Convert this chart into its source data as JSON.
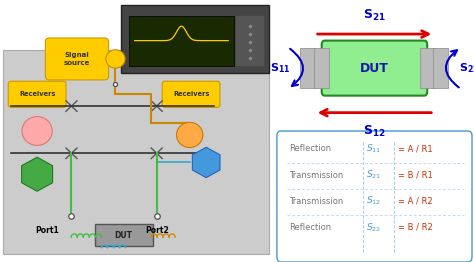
{
  "left_bg_color": "#cccccc",
  "left_bg_edge": "#aaaaaa",
  "instr_body_color": "#444444",
  "instr_edge_color": "#222222",
  "screen_color": "#1a1a00",
  "screen_edge": "#111111",
  "signal_box_color": "#ffcc00",
  "signal_box_edge": "#cc9900",
  "receivers_box_color": "#ffcc00",
  "receivers_box_edge": "#cc9900",
  "r1_color": "#ffaaaa",
  "r1_edge": "#dd7777",
  "r2_color": "#ffaa44",
  "r2_edge": "#cc7700",
  "hex_A_color": "#44aa44",
  "hex_A_edge": "#227722",
  "hex_B_color": "#4499dd",
  "hex_B_edge": "#2266bb",
  "dut_bot_color": "#999999",
  "dut_bot_edge": "#555555",
  "wire_orange": "#cc8800",
  "wire_green": "#44bb44",
  "wire_black": "#333333",
  "wire_blue": "#33aacc",
  "port_color": "#000000",
  "dut_diagram_color": "#90ee90",
  "dut_diagram_edge": "#228822",
  "dut_connector_color": "#aaaaaa",
  "arrow_red": "#dd0000",
  "s_blue": "#0000cc",
  "table_edge": "#4499cc",
  "table_bg": "#ffffff",
  "type_color": "#777777",
  "param_color": "#4499cc",
  "eq_color": "#cc3300",
  "rows": [
    {
      "type": "Reflection",
      "sub": "11",
      "eq": "= A / R1"
    },
    {
      "type": "Transmission",
      "sub": "21",
      "eq": "= B / R1"
    },
    {
      "type": "Transmission",
      "sub": "12",
      "eq": "= A / R2"
    },
    {
      "type": "Reflection",
      "sub": "22",
      "eq": "= B / R2"
    }
  ]
}
